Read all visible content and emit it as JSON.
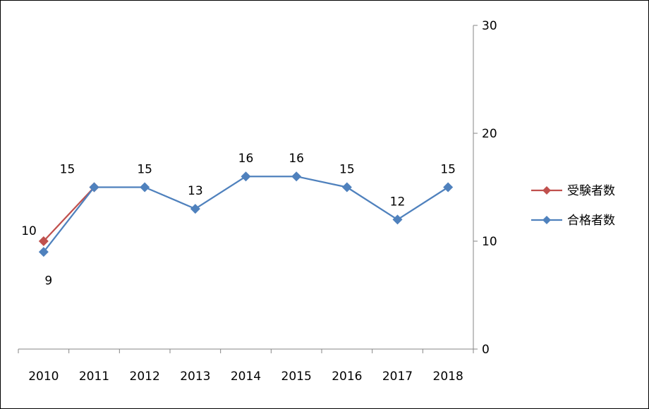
{
  "chart_data": {
    "type": "line",
    "categories": [
      "2010",
      "2011",
      "2012",
      "2013",
      "2014",
      "2015",
      "2016",
      "2017",
      "2018"
    ],
    "series": [
      {
        "name": "受験者数",
        "color": "#c0504d",
        "values": [
          10,
          15,
          null,
          null,
          null,
          null,
          null,
          null,
          null
        ],
        "labels": [
          "10",
          "",
          "",
          "",
          "",
          "",
          "",
          "",
          ""
        ]
      },
      {
        "name": "合格者数",
        "color": "#4f81bd",
        "values": [
          9,
          15,
          15,
          13,
          16,
          16,
          15,
          12,
          15
        ],
        "labels": [
          "9",
          "15",
          "15",
          "13",
          "16",
          "16",
          "15",
          "12",
          "15"
        ]
      }
    ],
    "ylim": [
      0,
      30
    ],
    "yticks": [
      "0",
      "10",
      "20",
      "30"
    ],
    "y_axis_side": "right",
    "legend": "right",
    "grid": false
  }
}
